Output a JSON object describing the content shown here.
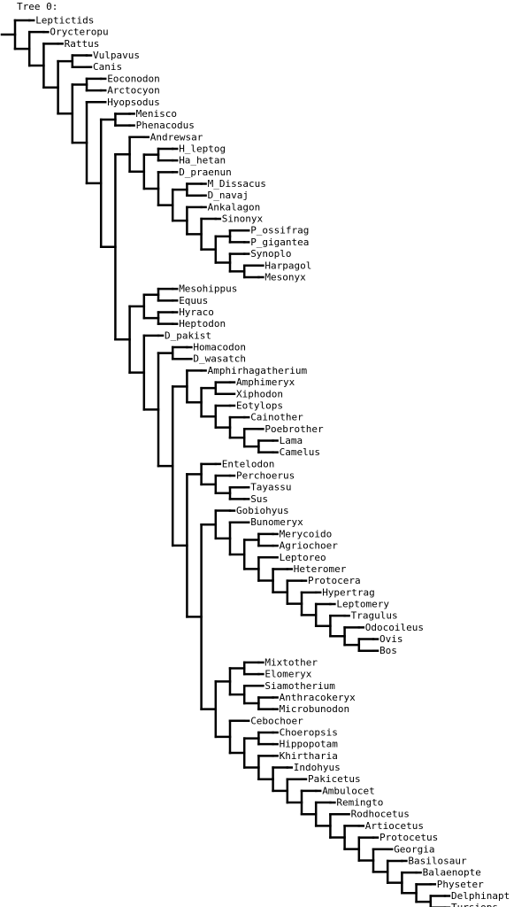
{
  "title": "Tree 0:",
  "colors": {
    "line": "#000000",
    "background": "#ffffff"
  },
  "tree": [
    "Leptictids",
    [
      "Orycteropu",
      [
        "Rattus",
        [
          [
            "Vulpavus",
            "Canis"
          ],
          [
            [
              "Eoconodon",
              "Arctocyon"
            ],
            [
              "Hyopsodus",
              [
                [
                  "Menisco",
                  "Phenacodus"
                ],
                [
                  [
                    "Andrewsar",
                    [
                      [
                        "H_leptog",
                        "Ha_hetan"
                      ],
                      [
                        "D_praenun",
                        [
                          [
                            "M_Dissacus",
                            "D_navaj"
                          ],
                          [
                            "Ankalagon",
                            [
                              "Sinonyx",
                              [
                                [
                                  "P_ossifrag",
                                  "P_gigantea"
                                ],
                                [
                                  "Synoplo",
                                  [
                                    "Harpagol",
                                    "Mesonyx"
                                  ]
                                ]
                              ]
                            ]
                          ]
                        ]
                      ]
                    ]
                  ],
                  [
                    [
                      [
                        "Mesohippus",
                        "Equus"
                      ],
                      [
                        "Hyraco",
                        "Heptodon"
                      ]
                    ],
                    [
                      "D_pakist",
                      [
                        [
                          "Homacodon",
                          "D_wasatch"
                        ],
                        [
                          [
                            "Amphirhagatherium",
                            [
                              [
                                "Amphimeryx",
                                "Xiphodon"
                              ],
                              [
                                "Eotylops",
                                [
                                  "Cainother",
                                  [
                                    "Poebrother",
                                    [
                                      "Lama",
                                      "Camelus"
                                    ]
                                  ]
                                ]
                              ]
                            ]
                          ],
                          [
                            [
                              "Entelodon",
                              [
                                "Perchoerus",
                                [
                                  "Tayassu",
                                  "Sus"
                                ]
                              ]
                            ],
                            [
                              [
                                "Gobiohyus",
                                [
                                  "Bunomeryx",
                                  [
                                    [
                                      "Merycoido",
                                      "Agriochoer"
                                    ],
                                    [
                                      "Leptoreo",
                                      [
                                        "Heteromer",
                                        [
                                          "Protocera",
                                          [
                                            "Hypertrag",
                                            [
                                              "Leptomery",
                                              [
                                                "Tragulus",
                                                [
                                                  "Odocoileus",
                                                  [
                                                    "Ovis",
                                                    "Bos"
                                                  ]
                                                ]
                                              ]
                                            ]
                                          ]
                                        ]
                                      ]
                                    ]
                                  ]
                                ]
                              ],
                              [
                                [
                                  [
                                    "Mixtother",
                                    "Elomeryx"
                                  ],
                                  [
                                    "Siamotherium",
                                    [
                                      "Anthracokeryx",
                                      "Microbunodon"
                                    ]
                                  ]
                                ],
                                [
                                  "Cebochoer",
                                  [
                                    [
                                      "Choeropsis",
                                      "Hippopotam"
                                    ],
                                    [
                                      "Khirtharia",
                                      [
                                        "Indohyus",
                                        [
                                          "Pakicetus",
                                          [
                                            "Ambulocet",
                                            [
                                              "Remingto",
                                              [
                                                "Rodhocetus",
                                                [
                                                  "Artiocetus",
                                                  [
                                                    "Protocetus",
                                                    [
                                                      "Georgia",
                                                      [
                                                        "Basilosaur",
                                                        [
                                                          "Balaenopte",
                                                          [
                                                            "Physeter",
                                                            [
                                                              "Delphinapt",
                                                              "Tursiops"
                                                            ]
                                                          ]
                                                        ]
                                                      ]
                                                    ]
                                                  ]
                                                ]
                                              ]
                                            ]
                                          ]
                                        ]
                                      ]
                                    ]
                                  ]
                                ]
                              ]
                            ]
                          ]
                        ]
                      ]
                    ]
                  ]
                ]
              ]
            ]
          ]
        ]
      ]
    ]
  ]
}
